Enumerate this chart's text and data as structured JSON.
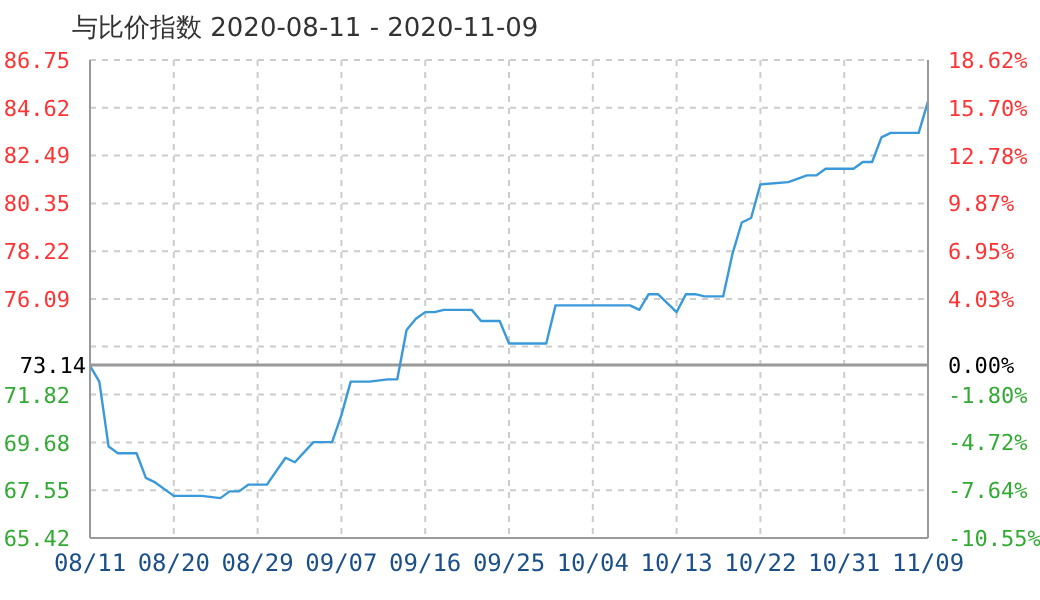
{
  "chart_data": {
    "type": "line",
    "title": "与比价指数 2020-08-11 - 2020-11-09",
    "x": [
      "2020-08-11",
      "2020-08-12",
      "2020-08-13",
      "2020-08-14",
      "2020-08-16",
      "2020-08-17",
      "2020-08-18",
      "2020-08-20",
      "2020-08-23",
      "2020-08-25",
      "2020-08-26",
      "2020-08-27",
      "2020-08-28",
      "2020-08-30",
      "2020-09-01",
      "2020-09-02",
      "2020-09-04",
      "2020-09-06",
      "2020-09-07",
      "2020-09-08",
      "2020-09-10",
      "2020-09-12",
      "2020-09-13",
      "2020-09-14",
      "2020-09-15",
      "2020-09-16",
      "2020-09-17",
      "2020-09-18",
      "2020-09-21",
      "2020-09-22",
      "2020-09-24",
      "2020-09-25",
      "2020-09-29",
      "2020-09-30",
      "2020-10-08",
      "2020-10-09",
      "2020-10-10",
      "2020-10-11",
      "2020-10-13",
      "2020-10-14",
      "2020-10-15",
      "2020-10-16",
      "2020-10-18",
      "2020-10-19",
      "2020-10-20",
      "2020-10-21",
      "2020-10-22",
      "2020-10-25",
      "2020-10-27",
      "2020-10-28",
      "2020-10-29",
      "2020-11-01",
      "2020-11-02",
      "2020-11-03",
      "2020-11-04",
      "2020-11-05",
      "2020-11-08",
      "2020-11-09"
    ],
    "series": [
      {
        "color": "#3a9ad9",
        "values": [
          73.1,
          72.4,
          69.5,
          69.2,
          69.2,
          68.1,
          67.9,
          67.3,
          67.3,
          67.2,
          67.5,
          67.5,
          67.8,
          67.8,
          69.0,
          68.8,
          69.7,
          69.7,
          70.9,
          72.4,
          72.4,
          72.5,
          72.5,
          74.7,
          75.2,
          75.5,
          75.5,
          75.6,
          75.6,
          75.1,
          75.1,
          74.1,
          74.1,
          75.8,
          75.8,
          75.6,
          76.3,
          76.3,
          75.5,
          76.3,
          76.3,
          76.2,
          76.2,
          78.1,
          79.5,
          79.7,
          81.2,
          81.3,
          81.6,
          81.6,
          81.9,
          81.9,
          82.2,
          82.2,
          83.3,
          83.5,
          83.5,
          84.9
        ]
      }
    ],
    "xlim": [
      "2020-08-11",
      "2020-11-09"
    ],
    "xticks": [
      {
        "value": "2020-08-11",
        "label": "08/11"
      },
      {
        "value": "2020-08-20",
        "label": "08/20"
      },
      {
        "value": "2020-08-29",
        "label": "08/29"
      },
      {
        "value": "2020-09-07",
        "label": "09/07"
      },
      {
        "value": "2020-09-16",
        "label": "09/16"
      },
      {
        "value": "2020-09-25",
        "label": "09/25"
      },
      {
        "value": "2020-10-04",
        "label": "10/04"
      },
      {
        "value": "2020-10-13",
        "label": "10/13"
      },
      {
        "value": "2020-10-22",
        "label": "10/22"
      },
      {
        "value": "2020-10-31",
        "label": "10/31"
      },
      {
        "value": "2020-11-09",
        "label": "11/09"
      }
    ],
    "ylim": [
      65.42,
      86.75
    ],
    "yticks": [
      65.42,
      67.55,
      69.68,
      71.82,
      {
        "value": 73.96,
        "label": null
      },
      76.09,
      78.22,
      80.35,
      82.49,
      84.62,
      86.75
    ],
    "y2lim": [
      -10.55,
      18.62
    ],
    "y2ticks": [
      {
        "value": -10.55,
        "label": "-10.55%"
      },
      {
        "value": -7.64,
        "label": "-7.64%"
      },
      {
        "value": -4.72,
        "label": "-4.72%"
      },
      {
        "value": -1.8,
        "label": "-1.80%"
      },
      {
        "value": 0,
        "label": "0.00%"
      },
      {
        "value": 1.11,
        "label": null
      },
      {
        "value": 4.03,
        "label": "4.03%"
      },
      {
        "value": 6.95,
        "label": "6.95%"
      },
      {
        "value": 9.87,
        "label": "9.87%"
      },
      {
        "value": 12.78,
        "label": "12.78%"
      },
      {
        "value": 15.7,
        "label": "15.70%"
      },
      {
        "value": 18.62,
        "label": "18.62%"
      }
    ],
    "ref_lines": [
      {
        "axis": "y",
        "value": 73.14,
        "label": "73.14",
        "color": "#999999"
      }
    ],
    "grid": true,
    "marker": "none",
    "line_style": "solid",
    "legend": false
  }
}
